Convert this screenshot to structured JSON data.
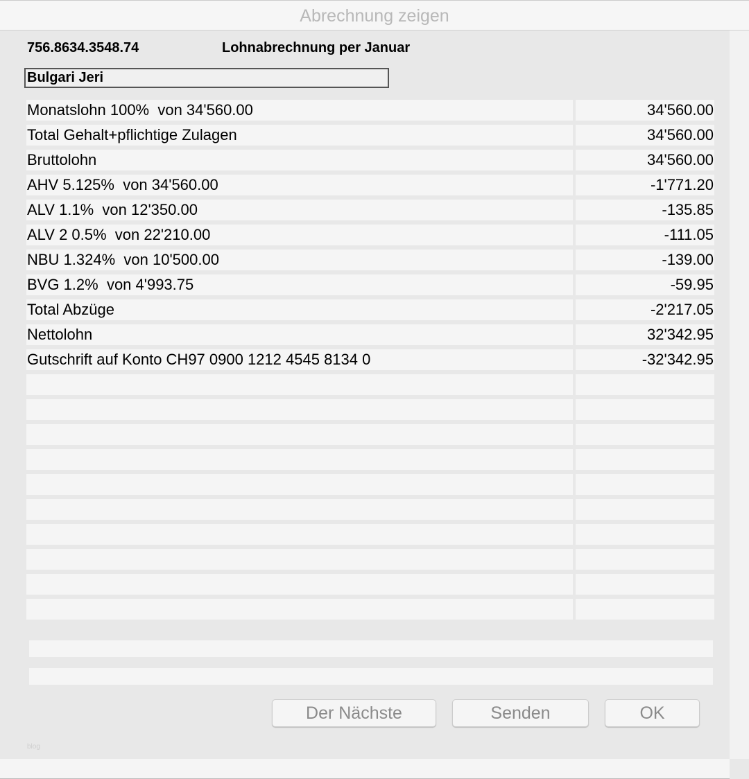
{
  "window": {
    "title": "Abrechnung zeigen"
  },
  "header": {
    "ahv_number": "756.8634.3548.74",
    "title": "Lohnabrechnung per Januar",
    "employee_name": "Bulgari Jeri"
  },
  "rows": [
    {
      "label": "Monatslohn 100%  von 34'560.00",
      "value": "34'560.00"
    },
    {
      "label": "Total Gehalt+pflichtige Zulagen",
      "value": "34'560.00"
    },
    {
      "label": "Bruttolohn",
      "value": "34'560.00"
    },
    {
      "label": "AHV 5.125%  von 34'560.00",
      "value": "-1'771.20"
    },
    {
      "label": "ALV 1.1%  von 12'350.00",
      "value": "-135.85"
    },
    {
      "label": "ALV 2 0.5%  von 22'210.00",
      "value": "-111.05"
    },
    {
      "label": "NBU 1.324%  von 10'500.00",
      "value": "-139.00"
    },
    {
      "label": "BVG 1.2%  von 4'993.75",
      "value": "-59.95"
    },
    {
      "label": "Total Abzüge",
      "value": "-2'217.05"
    },
    {
      "label": "Nettolohn",
      "value": "32'342.95"
    },
    {
      "label": "Gutschrift auf Konto CH97 0900 1212 4545 8134 0",
      "value": "-32'342.95"
    },
    {
      "label": "",
      "value": ""
    },
    {
      "label": "",
      "value": ""
    },
    {
      "label": "",
      "value": ""
    },
    {
      "label": "",
      "value": ""
    },
    {
      "label": "",
      "value": ""
    },
    {
      "label": "",
      "value": ""
    },
    {
      "label": "",
      "value": ""
    },
    {
      "label": "",
      "value": ""
    },
    {
      "label": "",
      "value": ""
    },
    {
      "label": "",
      "value": ""
    }
  ],
  "buttons": {
    "next": "Der Nächste",
    "send": "Senden",
    "ok": "OK"
  },
  "footer": {
    "watermark": "blog"
  }
}
